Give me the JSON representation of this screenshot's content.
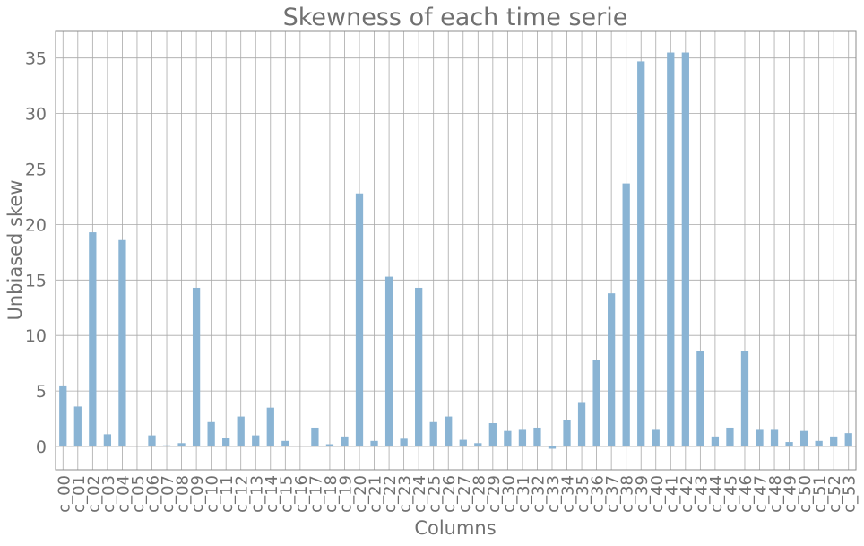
{
  "chart_data": {
    "type": "bar",
    "title": "Skewness of each time serie",
    "xlabel": "Columns",
    "ylabel": "Unbiased skew",
    "ylim": [
      -2.1,
      37.4
    ],
    "yticks": [
      0,
      5,
      10,
      15,
      20,
      25,
      30,
      35
    ],
    "grid": true,
    "legend": "none",
    "colors": {
      "bar": "#8ab4d4",
      "grid": "#a9a9a9",
      "frame": "#8c8c8c",
      "text": "#707070"
    },
    "categories": [
      "c_00",
      "c_01",
      "c_02",
      "c_03",
      "c_04",
      "c_05",
      "c_06",
      "c_07",
      "c_08",
      "c_09",
      "c_10",
      "c_11",
      "c_12",
      "c_13",
      "c_14",
      "c_15",
      "c_16",
      "c_17",
      "c_18",
      "c_19",
      "c_20",
      "c_21",
      "c_22",
      "c_23",
      "c_24",
      "c_25",
      "c_26",
      "c_27",
      "c_28",
      "c_29",
      "c_30",
      "c_31",
      "c_32",
      "c_33",
      "c_34",
      "c_35",
      "c_36",
      "c_37",
      "c_38",
      "c_39",
      "c_40",
      "c_41",
      "c_42",
      "c_43",
      "c_44",
      "c_45",
      "c_46",
      "c_47",
      "c_48",
      "c_49",
      "c_50",
      "c_51",
      "c_52",
      "c_53"
    ],
    "values": [
      5.5,
      3.6,
      19.3,
      1.1,
      18.6,
      0.0,
      1.0,
      0.1,
      0.3,
      14.3,
      2.2,
      0.8,
      2.7,
      1.0,
      3.5,
      0.5,
      0.0,
      1.7,
      0.2,
      0.9,
      22.8,
      0.5,
      15.3,
      0.7,
      14.3,
      2.2,
      2.7,
      0.6,
      0.3,
      2.1,
      1.4,
      1.5,
      1.7,
      -0.2,
      2.4,
      4.0,
      7.8,
      13.8,
      23.7,
      34.7,
      1.5,
      35.5,
      35.5,
      8.6,
      0.9,
      1.7,
      8.6,
      1.5,
      1.5,
      0.4,
      1.4,
      0.5,
      0.9,
      1.2
    ]
  }
}
